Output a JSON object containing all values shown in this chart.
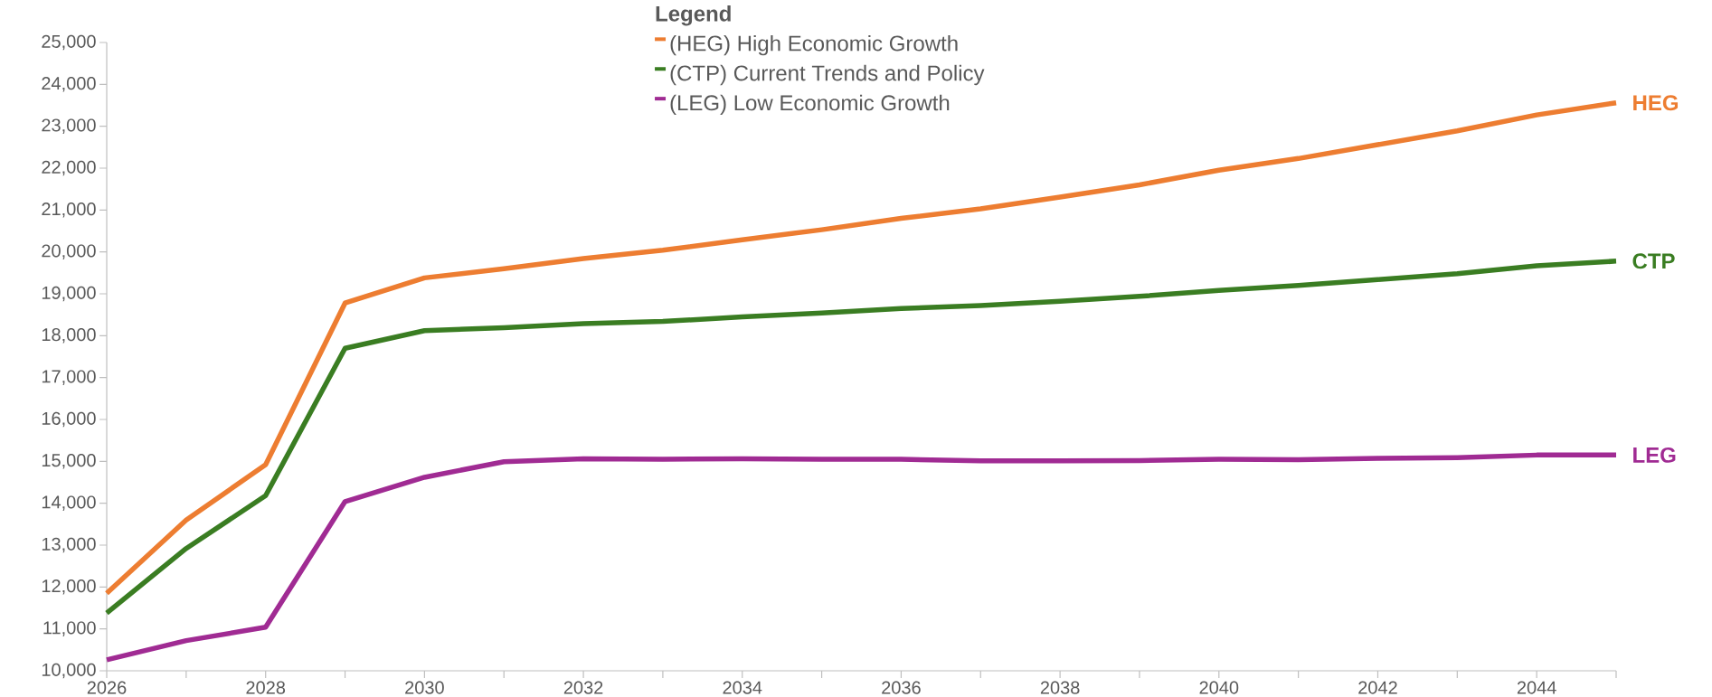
{
  "chart_data": {
    "type": "line",
    "x": [
      2026,
      2027,
      2028,
      2029,
      2030,
      2031,
      2032,
      2033,
      2034,
      2035,
      2036,
      2037,
      2038,
      2039,
      2040,
      2041,
      2042,
      2043,
      2044,
      2045
    ],
    "series": [
      {
        "name": "(HEG) High Economic Growth",
        "color": "#ed7d31",
        "values": [
          11850,
          13600,
          14920,
          18780,
          19380,
          19600,
          19840,
          20040,
          20290,
          20530,
          20800,
          21030,
          21310,
          21600,
          21950,
          22230,
          22560,
          22890,
          23270,
          23560
        ]
      },
      {
        "name": "(CTP) Current Trends and Policy",
        "color": "#3a7d22",
        "values": [
          11380,
          12920,
          14180,
          17700,
          18120,
          18190,
          18290,
          18340,
          18450,
          18540,
          18650,
          18720,
          18820,
          18940,
          19080,
          19200,
          19340,
          19480,
          19670,
          19780
        ]
      },
      {
        "name": "(LEG) Low Economic Growth",
        "color": "#a02b93",
        "values": [
          10260,
          10720,
          11040,
          14040,
          14620,
          14990,
          15060,
          15050,
          15060,
          15050,
          15050,
          15010,
          15010,
          15020,
          15050,
          15040,
          15070,
          15090,
          15150,
          15150
        ]
      }
    ],
    "legend_title": "Legend",
    "legend": "top",
    "annotations": [
      "HEG",
      "CTP",
      "LEG"
    ],
    "xlim": [
      2026,
      2045
    ],
    "xticks": [
      2026,
      {
        "value": 2027,
        "label": null
      },
      2028,
      {
        "value": 2029,
        "label": null
      },
      2030,
      {
        "value": 2031,
        "label": null
      },
      2032,
      {
        "value": 2033,
        "label": null
      },
      2034,
      {
        "value": 2035,
        "label": null
      },
      2036,
      {
        "value": 2037,
        "label": null
      },
      2038,
      {
        "value": 2039,
        "label": null
      },
      2040,
      {
        "value": 2041,
        "label": null
      },
      2042,
      {
        "value": 2043,
        "label": null
      },
      2044,
      {
        "value": 2045,
        "label": null
      }
    ],
    "ylim": [
      10000,
      25000
    ],
    "yticks": [
      {
        "value": 10000,
        "label": "10,000"
      },
      {
        "value": 11000,
        "label": "11,000"
      },
      {
        "value": 12000,
        "label": "12,000"
      },
      {
        "value": 13000,
        "label": "13,000"
      },
      {
        "value": 14000,
        "label": "14,000"
      },
      {
        "value": 15000,
        "label": "15,000"
      },
      {
        "value": 16000,
        "label": "16,000"
      },
      {
        "value": 17000,
        "label": "17,000"
      },
      {
        "value": 18000,
        "label": "18,000"
      },
      {
        "value": 19000,
        "label": "19,000"
      },
      {
        "value": 20000,
        "label": "20,000"
      },
      {
        "value": 21000,
        "label": "21,000"
      },
      {
        "value": 22000,
        "label": "22,000"
      },
      {
        "value": 23000,
        "label": "23,000"
      },
      {
        "value": 24000,
        "label": "24,000"
      },
      {
        "value": 25000,
        "label": "25,000"
      }
    ],
    "grid": false,
    "marker": "none",
    "line_style": "solid"
  }
}
